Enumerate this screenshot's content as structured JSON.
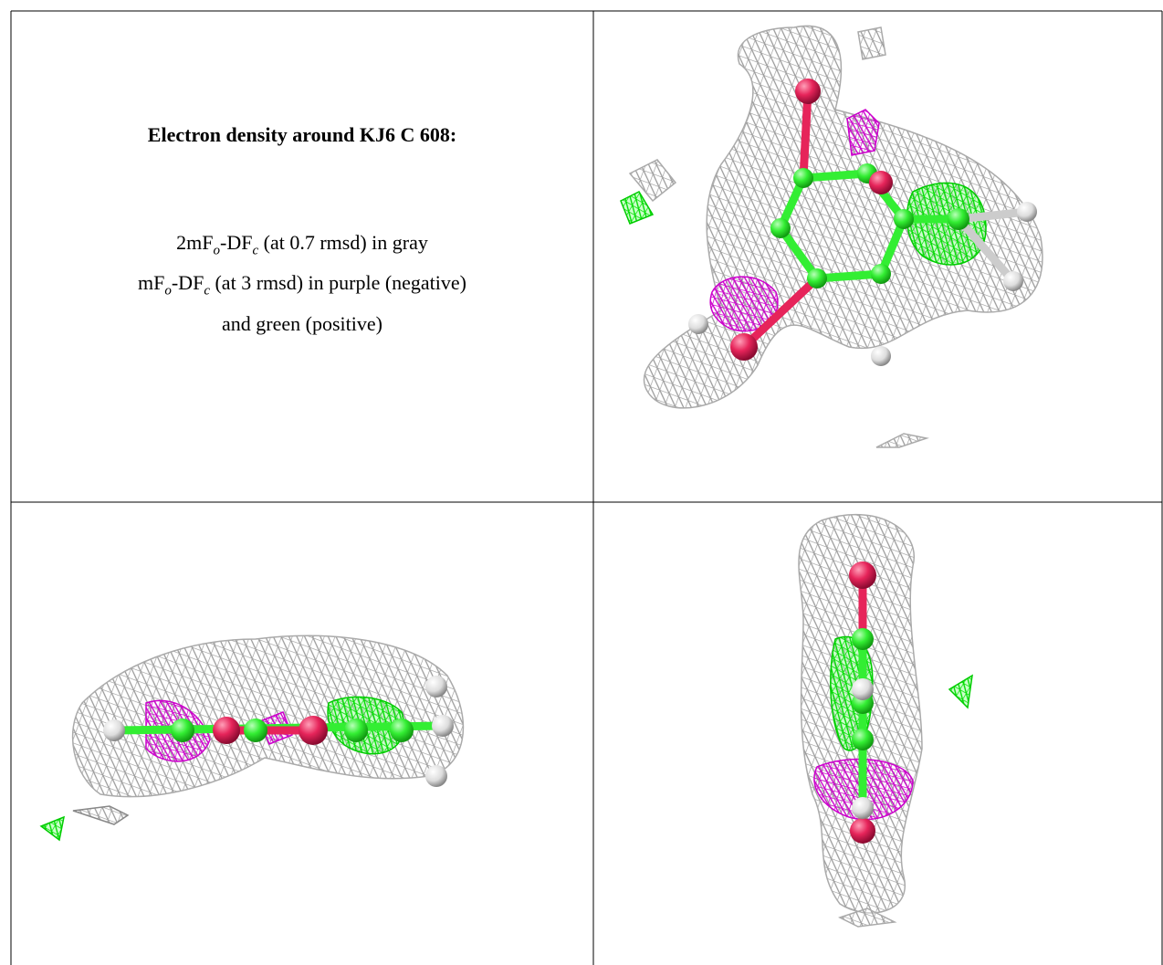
{
  "header": {
    "title": "Electron density around KJ6 C 608:"
  },
  "legend": [
    {
      "parts": [
        {
          "text": "2mF"
        },
        {
          "text": "o",
          "sub": true
        },
        {
          "text": "-DF"
        },
        {
          "text": "c",
          "sub": true
        },
        {
          "text": " (at 0.7 rmsd) in gray"
        }
      ]
    },
    {
      "parts": [
        {
          "text": "mF"
        },
        {
          "text": "o",
          "sub": true
        },
        {
          "text": "-DF"
        },
        {
          "text": "c",
          "sub": true
        },
        {
          "text": " (at 3 rmsd) in purple (negative)"
        }
      ]
    },
    {
      "parts": [
        {
          "text": "and green (positive)"
        }
      ]
    }
  ]
}
